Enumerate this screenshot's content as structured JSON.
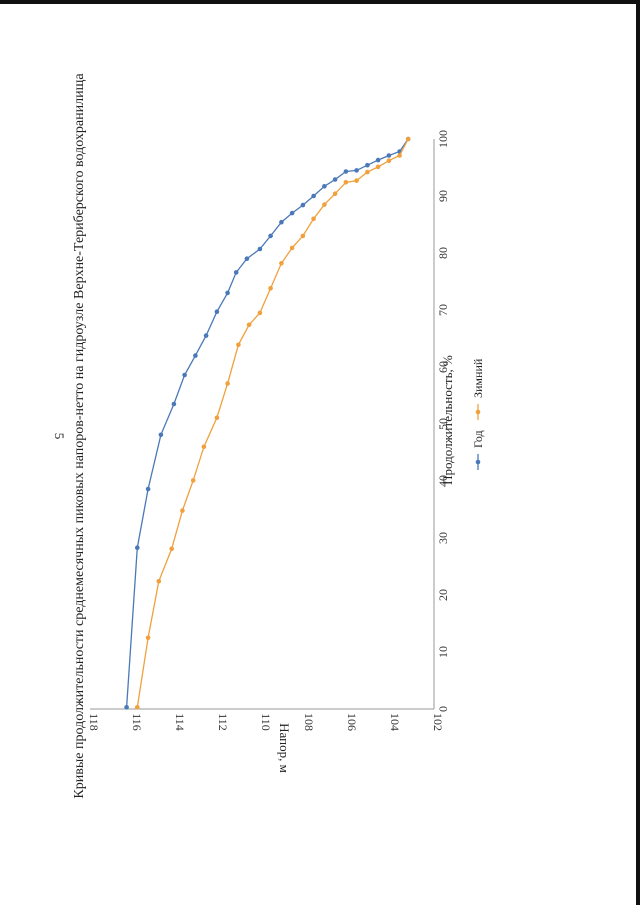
{
  "page": {
    "number": "5"
  },
  "chart_data": {
    "type": "line",
    "title": "Кривые продолжительности среднемесячных пиковых напоров-нетто на гидроузле Верхне-Териберского водохранилища",
    "xlabel": "Продолжительность, %",
    "ylabel": "Напор, м",
    "xlim": [
      0,
      100
    ],
    "ylim": [
      102,
      118
    ],
    "xticks": [
      0,
      10,
      20,
      30,
      40,
      50,
      60,
      70,
      80,
      90,
      100
    ],
    "yticks": [
      102,
      104,
      106,
      108,
      110,
      112,
      114,
      116,
      118
    ],
    "grid": false,
    "legend_position": "bottom",
    "series": [
      {
        "name": "Год",
        "color": "#4a78b8",
        "x": [
          0.3,
          28.3,
          38.6,
          48.1,
          53.5,
          58.6,
          62,
          65.5,
          69.7,
          73,
          76.6,
          79,
          80.7,
          83,
          85.4,
          87,
          88.4,
          90,
          91.7,
          92.9,
          94.3,
          94.5,
          95.4,
          96.3,
          97.1,
          97.8,
          100
        ],
        "y": [
          116.3,
          115.8,
          115.3,
          114.7,
          114.1,
          113.6,
          113.1,
          112.6,
          112.1,
          111.6,
          111.2,
          110.7,
          110.1,
          109.6,
          109.1,
          108.6,
          108.1,
          107.6,
          107.1,
          106.6,
          106.1,
          105.6,
          105.1,
          104.6,
          104.1,
          103.6,
          103.2
        ]
      },
      {
        "name": "Зимний",
        "color": "#f0a03c",
        "x": [
          0.3,
          12.5,
          22.4,
          28.1,
          34.8,
          40.1,
          46,
          51.1,
          57.1,
          63.9,
          67.4,
          69.5,
          73.8,
          78.2,
          80.9,
          83,
          86,
          88.5,
          90.4,
          92.4,
          92.7,
          94.2,
          95.1,
          96.2,
          97.1,
          100
        ],
        "y": [
          115.8,
          115.3,
          114.8,
          114.2,
          113.7,
          113.2,
          112.7,
          112.1,
          111.6,
          111.1,
          110.6,
          110.1,
          109.6,
          109.1,
          108.6,
          108.1,
          107.6,
          107.1,
          106.6,
          106.1,
          105.6,
          105.1,
          104.6,
          104.1,
          103.6,
          103.2
        ]
      }
    ]
  }
}
